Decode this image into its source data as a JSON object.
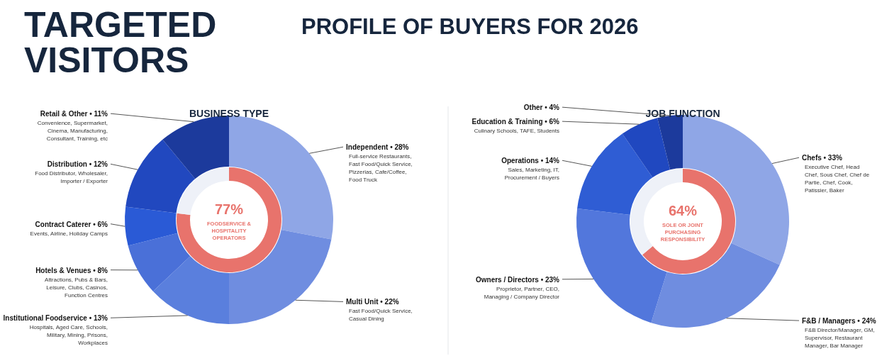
{
  "chart_data": [
    {
      "type": "donut",
      "title": "BUSINESS TYPE",
      "categories": [
        "Independent • 28%",
        "Multi Unit • 22%",
        "Institutional Foodservice • 13%",
        "Hotels & Venues • 8%",
        "Contract Caterer • 6%",
        "Distribution • 12%",
        "Retail & Other • 11%"
      ],
      "values": [
        28,
        22,
        13,
        8,
        6,
        12,
        11
      ],
      "colors": [
        "#8fa6e6",
        "#6f8de0",
        "#5a7fdd",
        "#4a70d8",
        "#2a5ad6",
        "#2148bf",
        "#1c3a9c"
      ],
      "annotations": [
        {
          "text": "TARGETED VISITORS"
        },
        {
          "text": "PROFILE OF BUYERS FOR 2026"
        },
        {
          "text": "Full-service Restaurants, Fast Food/Quick Service, Pizzerias, Cafe/Coffee, Food Truck",
          "x": "Independent • 28%"
        },
        {
          "text": "Fast Food/Quick Service, Casual Dining",
          "x": "Multi Unit • 22%"
        },
        {
          "text": "Hospitals, Aged Care, Schools, Military, Mining, Prisons, Workplaces",
          "x": "Institutional Foodservice • 13%"
        },
        {
          "text": "Attractions, Pubs & Bars, Leisure, Clubs, Casinos, Function Centres",
          "x": "Hotels & Venues • 8%"
        },
        {
          "text": "Events, Airline, Holiday Camps",
          "x": "Contract Caterer • 6%"
        },
        {
          "text": "Food Distributor, Wholesaler, Importer / Exporter",
          "x": "Distribution • 12%"
        },
        {
          "text": "Convenience, Supermarket, Cinema, Manufacturing, Consultant, Training, etc",
          "x": "Retail & Other • 11%"
        }
      ]
    },
    {
      "type": "donut",
      "categories": [
        "FOODSERVICE & HOSPITALITY OPERATORS",
        null
      ],
      "values": [
        77,
        23
      ],
      "value_labels": [
        "77%",
        null
      ],
      "colors": [
        "#e8736c",
        "#eef1f8"
      ]
    },
    {
      "type": "donut",
      "title": "JOB FUNCTION",
      "categories": [
        "Chefs • 33%",
        "F&B / Managers • 24%",
        "Owners / Directors • 23%",
        "Operations • 14%",
        "Education & Training • 6%",
        "Other • 4%"
      ],
      "values": [
        33,
        24,
        23,
        14,
        6,
        4
      ],
      "colors": [
        "#8fa6e6",
        "#6f8de0",
        "#5277dc",
        "#2f5dd4",
        "#2048c0",
        "#1c3a9c"
      ],
      "annotations": [
        {
          "text": "Executive Chef, Head Chef, Sous Chef, Chef de Partie, Chef, Cook, Patissier, Baker",
          "x": "Chefs • 33%"
        },
        {
          "text": "F&B Director/Manager, GM, Supervisor, Restaurant Manager, Bar Manager",
          "x": "F&B / Managers • 24%"
        },
        {
          "text": "Proprietor, Partner, CEO, Managing / Company Director",
          "x": "Owners / Directors • 23%"
        },
        {
          "text": "Sales, Marketing, IT, Procurement / Buyers",
          "x": "Operations • 14%"
        },
        {
          "text": "Culinary Schools, TAFE, Students",
          "x": "Education & Training • 6%"
        }
      ]
    },
    {
      "type": "donut",
      "categories": [
        "SOLE OR JOINT PURCHASING RESPONSIBILITY",
        null
      ],
      "values": [
        64,
        36
      ],
      "value_labels": [
        "64%",
        null
      ],
      "colors": [
        "#e8736c",
        "#eef1f8"
      ]
    }
  ]
}
